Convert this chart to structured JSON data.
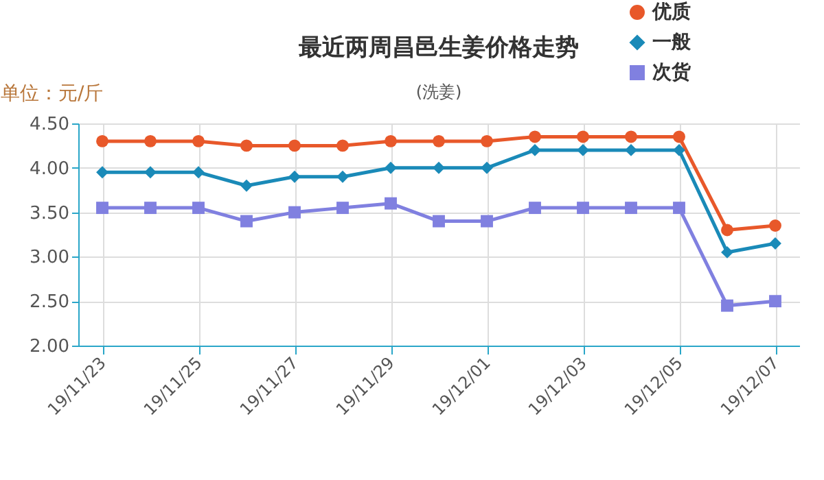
{
  "chart_data": {
    "type": "line",
    "title": "最近两周昌邑生姜价格走势",
    "subtitle": "(洗姜)",
    "ylabel": "单位：元/斤",
    "categories": [
      "19/11/23",
      null,
      "19/11/25",
      null,
      "19/11/27",
      null,
      "19/11/29",
      null,
      "19/12/01",
      null,
      "19/12/03",
      null,
      "19/12/05",
      null,
      "19/12/07"
    ],
    "series": [
      {
        "name": "优质",
        "color": "#e8582a",
        "marker": "circle",
        "values": [
          4.3,
          4.3,
          4.3,
          4.25,
          4.25,
          4.25,
          4.3,
          4.3,
          4.3,
          4.35,
          4.35,
          4.35,
          4.35,
          3.3,
          3.35
        ]
      },
      {
        "name": "一般",
        "color": "#1a8ab8",
        "marker": "diamond",
        "values": [
          3.95,
          3.95,
          3.95,
          3.8,
          3.9,
          3.9,
          4.0,
          4.0,
          4.0,
          4.2,
          4.2,
          4.2,
          4.2,
          3.05,
          3.15
        ]
      },
      {
        "name": "次货",
        "color": "#8080e0",
        "marker": "square",
        "values": [
          3.55,
          3.55,
          3.55,
          3.4,
          3.5,
          3.55,
          3.6,
          3.4,
          3.4,
          3.55,
          3.55,
          3.55,
          3.55,
          2.45,
          2.5
        ]
      }
    ],
    "ylim": [
      2,
      4.5
    ],
    "yticks": [
      {
        "value": 2,
        "label": "2.00"
      },
      {
        "value": 2.5,
        "label": "2.50"
      },
      {
        "value": 3,
        "label": "3.00"
      },
      {
        "value": 3.5,
        "label": "3.50"
      },
      {
        "value": 4,
        "label": "4.00"
      },
      {
        "value": 4.5,
        "label": "4.50"
      }
    ],
    "grid": true,
    "legend": "top right",
    "line_style": "solid"
  }
}
